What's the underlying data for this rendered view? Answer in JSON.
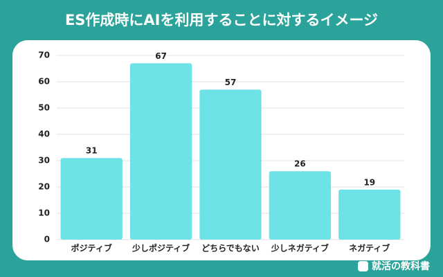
{
  "chart_data": {
    "type": "bar",
    "title": "ES作成時にAIを利用することに対するイメージ",
    "categories": [
      "ポジティブ",
      "少しポジティブ",
      "どちらでもない",
      "少しネガティブ",
      "ネガティブ"
    ],
    "values": [
      31,
      67,
      57,
      26,
      19
    ],
    "color": "#6de3e8",
    "ylim": [
      0,
      70
    ],
    "yticks": [
      0,
      10,
      20,
      30,
      40,
      50,
      60,
      70
    ],
    "grid": true
  },
  "footer": "就活の教科書"
}
